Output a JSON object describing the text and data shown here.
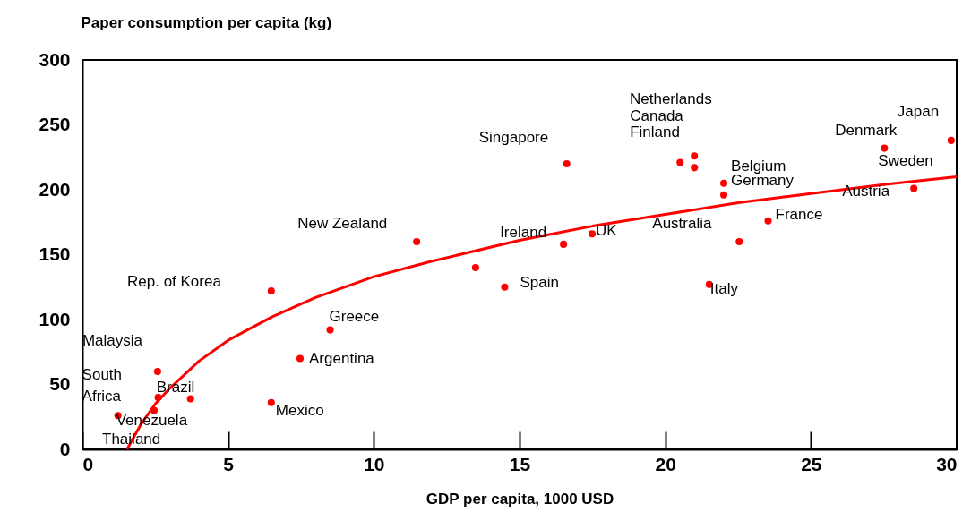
{
  "chart_data": {
    "type": "scatter",
    "xlabel": "GDP per capita, 1000 USD",
    "ylabel": "Paper consumption per capita (kg)",
    "xlim": [
      0,
      30
    ],
    "ylim": [
      0,
      300
    ],
    "xticks": [
      0,
      5,
      10,
      15,
      20,
      25,
      30
    ],
    "yticks": [
      0,
      50,
      100,
      150,
      200,
      250,
      300
    ],
    "grid": false,
    "marker": "circle",
    "series": [
      {
        "color": "#ff0000",
        "x": [
          6.48,
          8.5,
          7.47,
          2.58,
          2.6,
          3.71,
          2.46,
          1.22,
          6.48,
          11.47,
          13.49,
          14.49,
          16.51,
          16.62,
          17.49,
          20.51,
          21.0,
          21.0,
          22.01,
          22.01,
          21.51,
          22.54,
          23.53,
          27.52,
          28.53,
          29.81
        ],
        "values": [
          122,
          92,
          70,
          60,
          40,
          39,
          30,
          26,
          36,
          160,
          140,
          125,
          158,
          220,
          166,
          221,
          226,
          217,
          205,
          196,
          127,
          160,
          176,
          232,
          201,
          238
        ]
      },
      {
        "type": "line",
        "color": "#ff0000",
        "marker": "none",
        "x": [
          1.53,
          2,
          2.5,
          3,
          4,
          5,
          6.5,
          8,
          10,
          12,
          15,
          17.5,
          20,
          22.5,
          25,
          27.5,
          30
        ],
        "values": [
          0,
          19,
          35,
          47,
          68,
          84,
          102,
          117,
          133,
          145,
          161,
          172,
          181,
          190,
          197,
          204,
          210
        ]
      }
    ],
    "annotations": [
      "Rep. of Korea",
      {
        "text": "Greece",
        "x": 8.5,
        "y": 92
      },
      {
        "text": "Argentina",
        "x": 7.47,
        "y": 70
      },
      {
        "text": "Malaysia",
        "x": 2.58,
        "y": 60
      },
      {
        "text": "South\nAfrica",
        "x": 2.6,
        "y": 40
      },
      {
        "text": "Brazil",
        "x": 3.71,
        "y": 39
      },
      {
        "text": "Thailand",
        "x": 2.46,
        "y": 30
      },
      {
        "text": "Venezuela",
        "x": 1.22,
        "y": 26
      },
      {
        "text": "Mexico",
        "x": 6.48,
        "y": 36
      },
      {
        "text": "New Zealand",
        "x": 11.47,
        "y": 160
      },
      {
        "text": "Ireland",
        "x": 16.51,
        "y": 158
      },
      {
        "text": "Spain",
        "x": 14.49,
        "y": 125
      },
      {
        "text": "Singapore",
        "x": 16.62,
        "y": 220
      },
      {
        "text": "UK",
        "x": 17.49,
        "y": 166
      },
      "Netherlands",
      {
        "text": "Canada",
        "x": 20.51,
        "y": 221
      },
      {
        "text": "Finland",
        "x": 21.0,
        "y": 217
      },
      {
        "text": "Belgium",
        "x": 22.01,
        "y": 205
      },
      {
        "text": "Germany",
        "x": 22.01,
        "y": 196
      },
      {
        "text": "Italy",
        "x": 21.51,
        "y": 127
      },
      {
        "text": "Australia",
        "x": 22.54,
        "y": 160
      },
      {
        "text": "France",
        "x": 23.53,
        "y": 176
      },
      {
        "text": "Denmark",
        "x": 27.52,
        "y": 232
      },
      {
        "text": "Sweden",
        "x": 27.52,
        "y": 232
      },
      {
        "text": "Austria",
        "x": 28.53,
        "y": 201
      },
      {
        "text": "Japan",
        "x": 29.81,
        "y": 238
      }
    ]
  }
}
